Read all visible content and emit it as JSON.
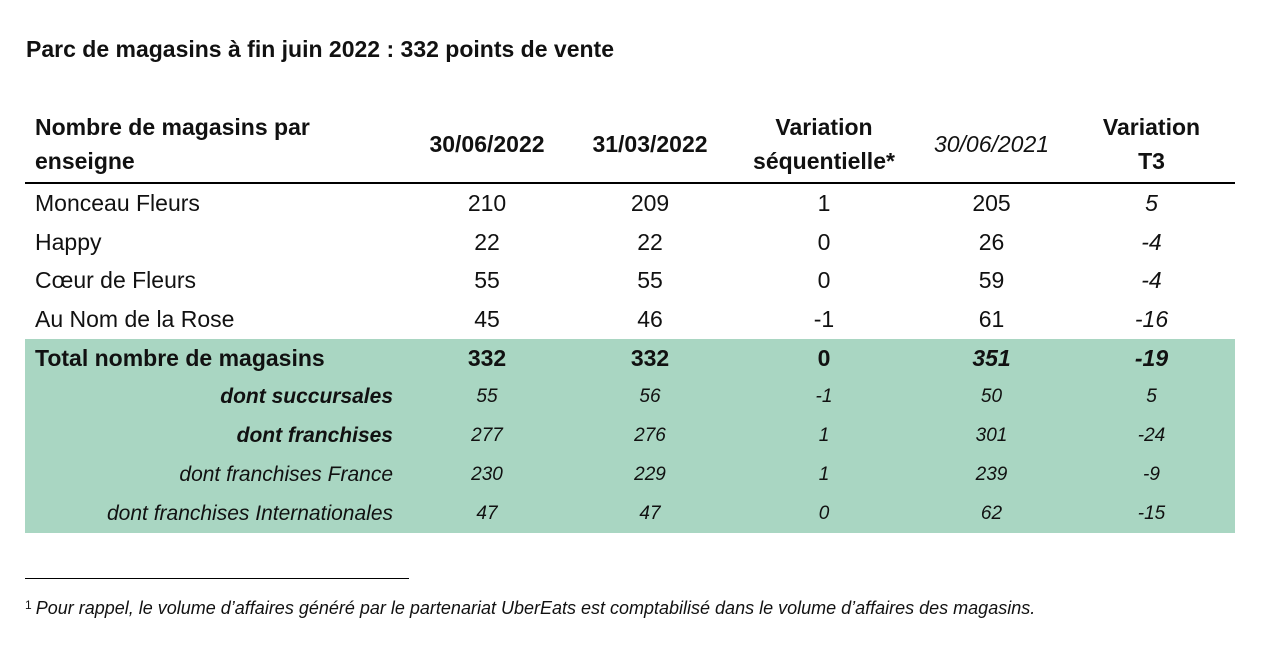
{
  "title": "Parc de magasins à fin juin 2022 : 332 points de vente",
  "table": {
    "headers": {
      "label_line1": "Nombre de magasins par",
      "label_line2": "enseigne",
      "date_current": "30/06/2022",
      "date_previous_quarter": "31/03/2022",
      "variation_seq_line1": "Variation",
      "variation_seq_line2": "séquentielle*",
      "date_previous_year": "30/06/2021",
      "variation_t3_line1": "Variation",
      "variation_t3_line2": "T3"
    },
    "rows": [
      {
        "label": "Monceau Fleurs",
        "d1": "210",
        "d2": "209",
        "var": "1",
        "d3": "205",
        "vt3": "5"
      },
      {
        "label": "Happy",
        "d1": "22",
        "d2": "22",
        "var": "0",
        "d3": "26",
        "vt3": "-4"
      },
      {
        "label": "Cœur de Fleurs",
        "d1": "55",
        "d2": "55",
        "var": "0",
        "d3": "59",
        "vt3": "-4"
      },
      {
        "label": "Au Nom de la Rose",
        "d1": "45",
        "d2": "46",
        "var": "-1",
        "d3": "61",
        "vt3": "-16"
      }
    ],
    "total": {
      "label": "Total nombre de magasins",
      "d1": "332",
      "d2": "332",
      "var": "0",
      "d3": "351",
      "vt3": "-19"
    },
    "sub_rows": [
      {
        "label": "dont succursales",
        "d1": "55",
        "d2": "56",
        "var": "-1",
        "d3": "50",
        "vt3": "5"
      },
      {
        "label": "dont franchises",
        "d1": "277",
        "d2": "276",
        "var": "1",
        "d3": "301",
        "vt3": "-24"
      },
      {
        "label": "dont franchises France",
        "d1": "230",
        "d2": "229",
        "var": "1",
        "d3": "239",
        "vt3": "-9"
      },
      {
        "label": "dont franchises Internationales",
        "d1": "47",
        "d2": "47",
        "var": "0",
        "d3": "62",
        "vt3": "-15"
      }
    ],
    "highlight_color": "#a9d6c2"
  },
  "footnote": {
    "marker": "1",
    "text": "Pour rappel, le volume d’affaires généré par le partenariat UberEats est comptabilisé dans le volume d’affaires des magasins."
  }
}
